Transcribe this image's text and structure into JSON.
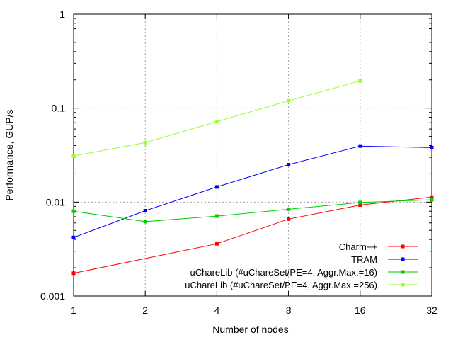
{
  "chart_data": {
    "type": "line",
    "title": "",
    "xlabel": "Number of nodes",
    "ylabel": "Performance, GUP/s",
    "x": [
      1,
      2,
      4,
      8,
      16,
      32
    ],
    "x_tick_labels": [
      "1",
      "2",
      "4",
      "8",
      "16",
      "32"
    ],
    "x_scale": "log2",
    "xlim": [
      1,
      32
    ],
    "y_scale": "log10",
    "ylim": [
      0.001,
      1
    ],
    "y_ticks": [
      0.001,
      0.01,
      0.1,
      1
    ],
    "y_tick_labels": [
      "0.001",
      "0.01",
      "0.1",
      "1"
    ],
    "grid": true,
    "legend_position": "bottom-right",
    "series": [
      {
        "name": "Charm++",
        "color": "#ff0000",
        "x": [
          1,
          4,
          8,
          16,
          32
        ],
        "values": [
          0.00175,
          0.0036,
          0.0066,
          0.0093,
          0.0113
        ]
      },
      {
        "name": "TRAM",
        "color": "#0000ff",
        "x": [
          1,
          2,
          4,
          8,
          16,
          32
        ],
        "values": [
          0.0042,
          0.0081,
          0.0145,
          0.025,
          0.0395,
          0.038
        ]
      },
      {
        "name": "uChareLib (#uChareSet/PE=4, Aggr.Max.=16)",
        "color": "#00cc00",
        "x": [
          1,
          2,
          4,
          8,
          16,
          32
        ],
        "values": [
          0.008,
          0.0062,
          0.0071,
          0.0084,
          0.0099,
          0.0106
        ]
      },
      {
        "name": "uChareLib (#uChareSet/PE=4, Aggr.Max.=256)",
        "color": "#99ff33",
        "x": [
          1,
          2,
          4,
          8,
          16
        ],
        "values": [
          0.031,
          0.043,
          0.072,
          0.12,
          0.195
        ]
      }
    ]
  }
}
